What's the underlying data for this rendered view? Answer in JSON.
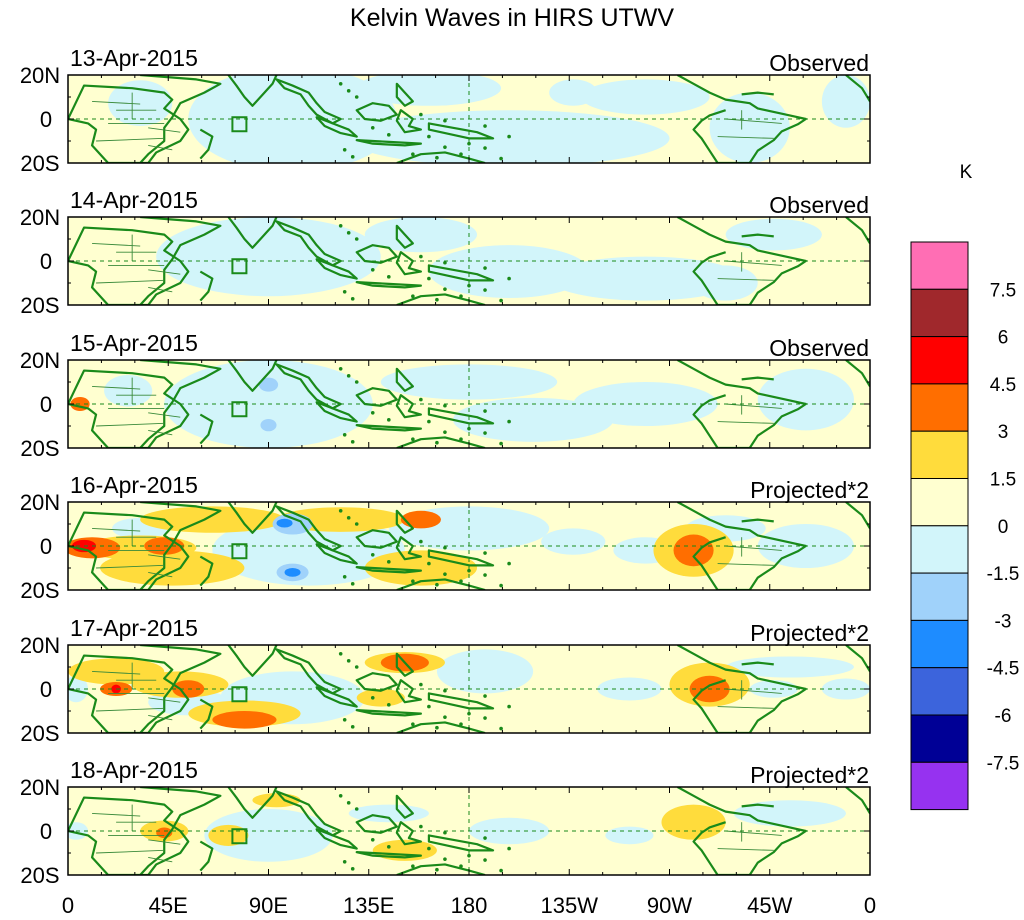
{
  "title": "Kelvin Waves in HIRS UTWV",
  "colorbar": {
    "unit": "K",
    "levels": [
      "7.5",
      "6",
      "4.5",
      "3",
      "1.5",
      "0",
      "-1.5",
      "-3",
      "-4.5",
      "-6",
      "-7.5"
    ],
    "colors": [
      "#ff6eb4",
      "#a0282c",
      "#ff0000",
      "#ff6e00",
      "#ffdc3c",
      "#ffffd0",
      "#d2f5fa",
      "#a0d2fa",
      "#1e8cff",
      "#3c64dc",
      "#000096",
      "#9632f0"
    ]
  },
  "lon_labels": [
    "0",
    "45E",
    "90E",
    "135E",
    "180",
    "135W",
    "90W",
    "45W",
    "0"
  ],
  "lat_labels": [
    "20N",
    "0",
    "20S"
  ],
  "panels": [
    {
      "date": "13-Apr-2015",
      "kind": "Observed"
    },
    {
      "date": "14-Apr-2015",
      "kind": "Observed"
    },
    {
      "date": "15-Apr-2015",
      "kind": "Observed"
    },
    {
      "date": "16-Apr-2015",
      "kind": "Projected*2"
    },
    {
      "date": "17-Apr-2015",
      "kind": "Projected*2"
    },
    {
      "date": "18-Apr-2015",
      "kind": "Projected*2"
    }
  ],
  "colors": {
    "coast": "#1a8a1a",
    "border": "#3a8a3a",
    "frame": "#000000"
  }
}
